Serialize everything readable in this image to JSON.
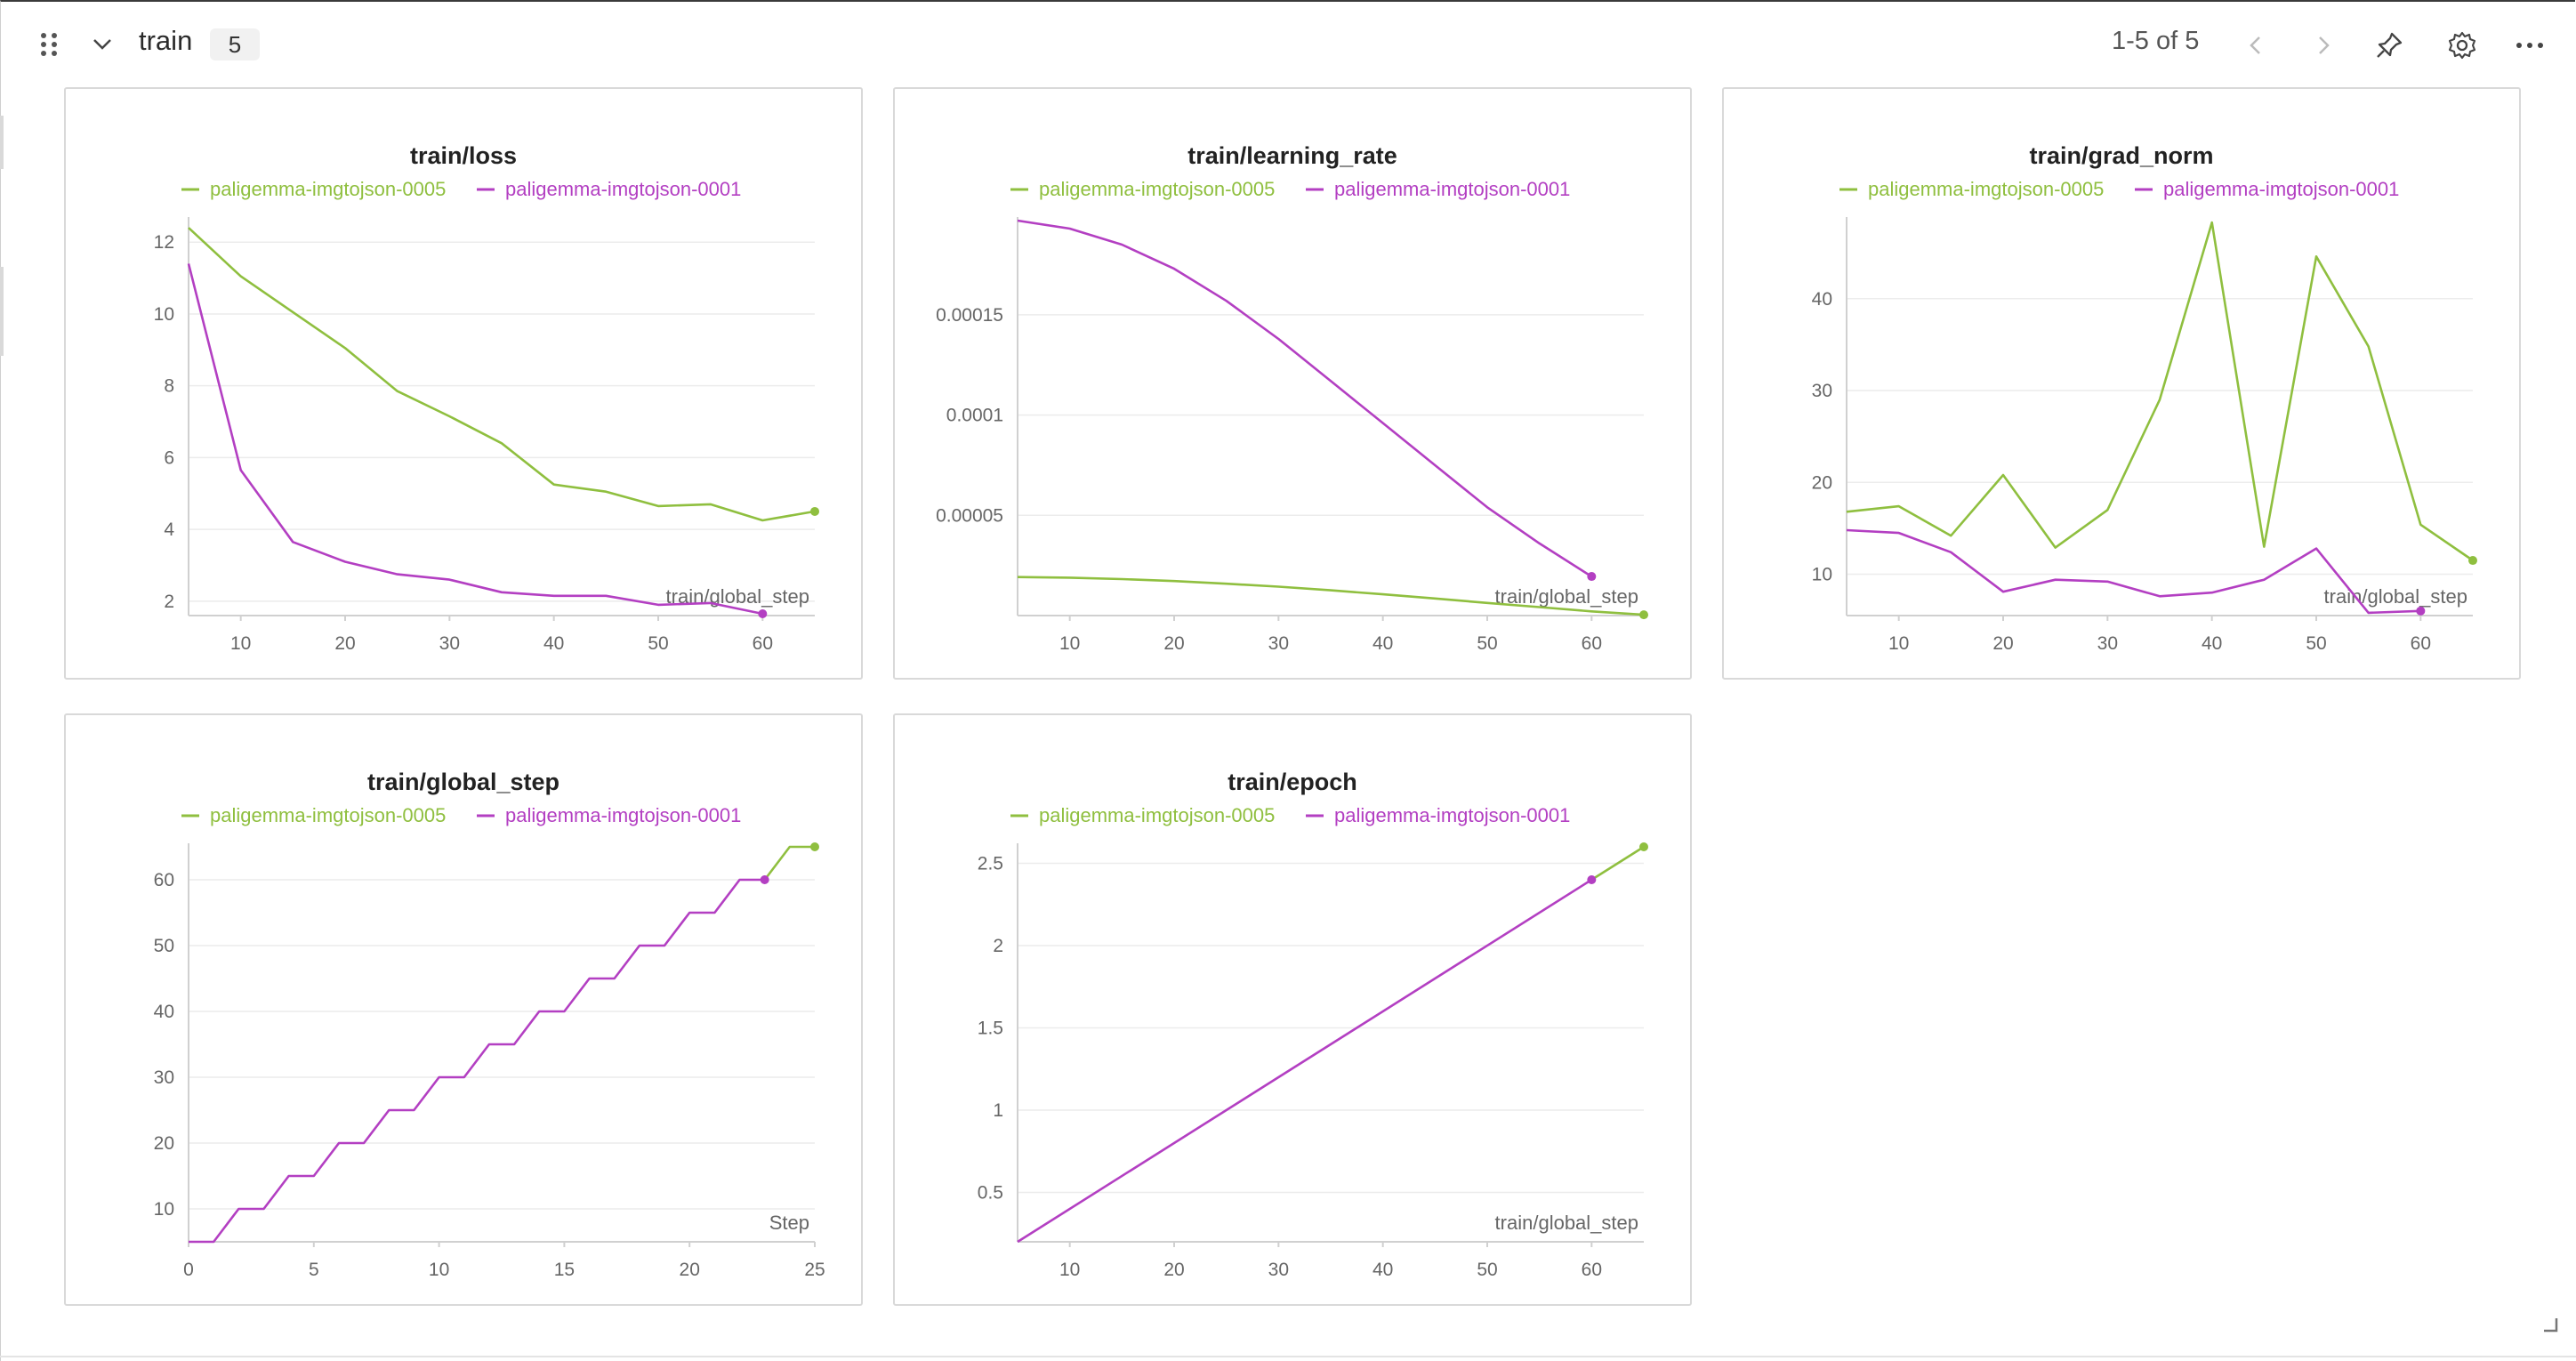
{
  "header": {
    "section_title": "train",
    "count": "5",
    "pager_text": "1-5 of 5",
    "icons": [
      "drag-handle-icon",
      "chevron-down-icon",
      "chevron-left-icon",
      "chevron-right-icon",
      "pin-icon",
      "gear-icon",
      "more-icon"
    ]
  },
  "colors": {
    "series_0005": "#8fbf3f",
    "series_0001": "#b33fc2",
    "grid": "#ececec",
    "axis": "#d0d0d0"
  },
  "chart_data": [
    {
      "type": "line",
      "title": "train/loss",
      "xlabel": "train/global_step",
      "xlim": [
        5,
        65
      ],
      "ylim": [
        1.6,
        12.6
      ],
      "xticks": [
        10,
        20,
        30,
        40,
        50,
        60
      ],
      "yticks": [
        2,
        4,
        6,
        8,
        10,
        12
      ],
      "ytick_labels": [
        "2",
        "4",
        "6",
        "8",
        "10",
        "12"
      ],
      "series": [
        {
          "name": "paligemma-imgtojson-0005",
          "color": "#8fbf3f",
          "x": [
            5,
            10,
            15,
            20,
            25,
            30,
            35,
            40,
            45,
            50,
            55,
            60,
            65
          ],
          "y": [
            12.4,
            11.05,
            10.05,
            9.05,
            7.85,
            7.15,
            6.4,
            5.25,
            5.05,
            4.65,
            4.7,
            4.25,
            4.5
          ]
        },
        {
          "name": "paligemma-imgtojson-0001",
          "color": "#b33fc2",
          "x": [
            5,
            10,
            15,
            20,
            25,
            30,
            35,
            40,
            45,
            50,
            55,
            60
          ],
          "y": [
            11.4,
            5.65,
            3.65,
            3.1,
            2.75,
            2.6,
            2.25,
            2.15,
            2.15,
            1.9,
            1.95,
            1.65
          ]
        }
      ]
    },
    {
      "type": "line",
      "title": "train/learning_rate",
      "xlabel": "train/global_step",
      "xlim": [
        5,
        65
      ],
      "ylim": [
        0,
        0.000197
      ],
      "xticks": [
        10,
        20,
        30,
        40,
        50,
        60
      ],
      "yticks": [
        5e-05,
        0.0001,
        0.00015
      ],
      "ytick_labels": [
        "0.00005",
        "0.0001",
        "0.00015"
      ],
      "series": [
        {
          "name": "paligemma-imgtojson-0005",
          "color": "#8fbf3f",
          "x": [
            5,
            10,
            15,
            20,
            25,
            30,
            35,
            40,
            45,
            50,
            55,
            60,
            65
          ],
          "y": [
            1.92e-05,
            1.89e-05,
            1.82e-05,
            1.72e-05,
            1.59e-05,
            1.44e-05,
            1.26e-05,
            1.06e-05,
            8.5e-06,
            6.3e-06,
            4.2e-06,
            2.1e-06,
            4e-07
          ]
        },
        {
          "name": "paligemma-imgtojson-0001",
          "color": "#b33fc2",
          "x": [
            5,
            10,
            15,
            20,
            25,
            30,
            35,
            40,
            45,
            50,
            55,
            60
          ],
          "y": [
            0.000197,
            0.000193,
            0.000185,
            0.000173,
            0.000157,
            0.000138,
            0.000117,
            9.6e-05,
            7.5e-05,
            5.4e-05,
            3.6e-05,
            1.95e-05
          ]
        }
      ]
    },
    {
      "type": "line",
      "title": "train/grad_norm",
      "xlabel": "train/global_step",
      "xlim": [
        5,
        65
      ],
      "ylim": [
        5.5,
        48.5
      ],
      "xticks": [
        10,
        20,
        30,
        40,
        50,
        60
      ],
      "yticks": [
        10,
        20,
        30,
        40
      ],
      "ytick_labels": [
        "10",
        "20",
        "30",
        "40"
      ],
      "series": [
        {
          "name": "paligemma-imgtojson-0005",
          "color": "#8fbf3f",
          "x": [
            5,
            10,
            15,
            20,
            25,
            30,
            35,
            40,
            45,
            50,
            55,
            60,
            65
          ],
          "y": [
            16.8,
            17.4,
            14.2,
            20.8,
            12.9,
            17.0,
            29.0,
            48.3,
            13.0,
            44.6,
            34.8,
            15.4,
            11.5
          ]
        },
        {
          "name": "paligemma-imgtojson-0001",
          "color": "#b33fc2",
          "x": [
            5,
            10,
            15,
            20,
            25,
            30,
            35,
            40,
            45,
            50,
            55,
            60
          ],
          "y": [
            14.8,
            14.5,
            12.4,
            8.1,
            9.4,
            9.2,
            7.6,
            8.0,
            9.4,
            12.8,
            5.8,
            6.0
          ]
        }
      ]
    },
    {
      "type": "line",
      "title": "train/global_step",
      "xlabel": "Step",
      "xlim": [
        0,
        25
      ],
      "ylim": [
        5,
        65
      ],
      "xticks": [
        0,
        5,
        10,
        15,
        20,
        25
      ],
      "yticks": [
        10,
        20,
        30,
        40,
        50,
        60
      ],
      "ytick_labels": [
        "10",
        "20",
        "30",
        "40",
        "50",
        "60"
      ],
      "series": [
        {
          "name": "paligemma-imgtojson-0005",
          "color": "#8fbf3f",
          "x": [
            23,
            24,
            25
          ],
          "y": [
            60,
            65,
            65
          ]
        },
        {
          "name": "paligemma-imgtojson-0001",
          "color": "#b33fc2",
          "x": [
            0,
            1,
            2,
            3,
            4,
            5,
            6,
            7,
            8,
            9,
            10,
            11,
            12,
            13,
            14,
            15,
            16,
            17,
            18,
            19,
            20,
            21,
            22,
            23
          ],
          "y": [
            5,
            5,
            10,
            10,
            15,
            15,
            20,
            20,
            25,
            25,
            30,
            30,
            35,
            35,
            40,
            40,
            45,
            45,
            50,
            50,
            55,
            55,
            60,
            60
          ]
        }
      ]
    },
    {
      "type": "line",
      "title": "train/epoch",
      "xlabel": "train/global_step",
      "xlim": [
        5,
        65
      ],
      "ylim": [
        0.2,
        2.6
      ],
      "xticks": [
        10,
        20,
        30,
        40,
        50,
        60
      ],
      "yticks": [
        0.5,
        1,
        1.5,
        2,
        2.5
      ],
      "ytick_labels": [
        "0.5",
        "1",
        "1.5",
        "2",
        "2.5"
      ],
      "series": [
        {
          "name": "paligemma-imgtojson-0005",
          "color": "#8fbf3f",
          "x": [
            60,
            65
          ],
          "y": [
            2.4,
            2.6
          ]
        },
        {
          "name": "paligemma-imgtojson-0001",
          "color": "#b33fc2",
          "x": [
            5,
            60
          ],
          "y": [
            0.2,
            2.4
          ]
        }
      ]
    }
  ]
}
